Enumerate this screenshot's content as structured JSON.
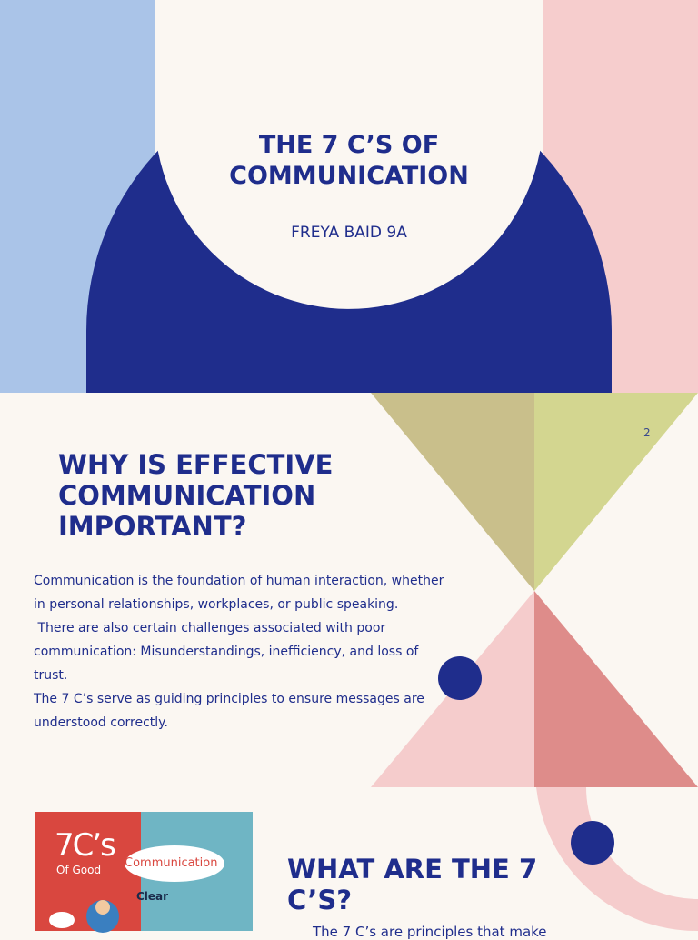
{
  "slides": [
    {
      "title": "THE 7 C’S OF COMMUNICATION",
      "subtitle": "FREYA BAID 9A"
    },
    {
      "page_number": "2",
      "title": "WHY IS EFFECTIVE COMMUNICATION IMPORTANT?",
      "paragraphs": [
        "Communication is the foundation of human interaction, whether in personal relationships, workplaces, or public speaking.",
        " There are also certain challenges associated with poor communication: Misunderstandings, inefficiency, and loss of trust.",
        "The 7 C’s serve as guiding principles to ensure messages are understood correctly."
      ]
    },
    {
      "image_texts": [
        "7C’s",
        "Of Good",
        "Communication",
        "Clear"
      ],
      "title": "WHAT ARE THE 7 C’S?",
      "body": "The 7 C’s are principles that make"
    }
  ]
}
